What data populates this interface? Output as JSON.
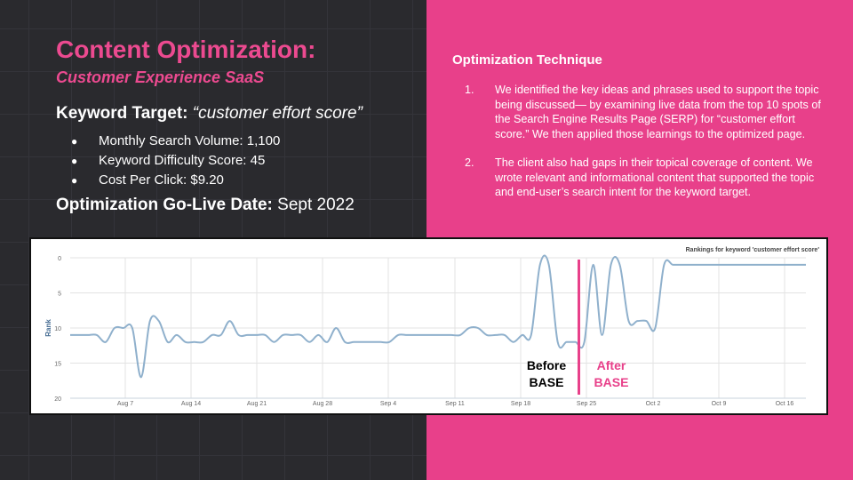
{
  "slide": {
    "title": "Content Optimization:",
    "subtitle": "Customer Experience SaaS",
    "keyword_label": "Keyword Target:",
    "keyword_value": "“customer effort score”",
    "bullets": [
      "Monthly Search Volume: 1,100",
      "Keyword Difficulty Score: 45",
      "Cost Per Click: $9.20"
    ],
    "golive_label": "Optimization Go-Live Date:",
    "golive_value": "Sept 2022",
    "technique_heading": "Optimization Technique",
    "steps": [
      {
        "num": "1.",
        "text": "We identified the key ideas and phrases used to support the topic being discussed— by examining live data from the top 10 spots of the Search Engine Results Page (SERP) for “customer effort score.” We then applied those learnings to the optimized page."
      },
      {
        "num": "2.",
        "text": "The client also had gaps in their topical coverage of content. We wrote relevant and informational content that supported the topic and end-user’s search intent for the keyword target."
      }
    ],
    "colors": {
      "accent": "#e8408a",
      "dark": "#2a2a2e",
      "line": "#8fb0cc"
    }
  },
  "chart_data": {
    "type": "line",
    "title": "Rankings for keyword 'customer effort score'",
    "ylabel": "Rank",
    "xlabel": "",
    "ylim": [
      20,
      0
    ],
    "yticks": [
      0,
      5,
      10,
      15,
      20
    ],
    "grid": true,
    "x_tick_labels": [
      "Aug 7",
      "Aug 14",
      "Aug 21",
      "Aug 28",
      "Sep 4",
      "Sep 11",
      "Sep 18",
      "Sep 25",
      "Oct 2",
      "Oct 9",
      "Oct 16"
    ],
    "series": [
      {
        "x": [
          1,
          2,
          3,
          4,
          5,
          6,
          7,
          8,
          9,
          10,
          11,
          12,
          13,
          14,
          15,
          16,
          17,
          18,
          19,
          20,
          21,
          22,
          23,
          24,
          25,
          26,
          27,
          28,
          29,
          30,
          31,
          32,
          33,
          34,
          35,
          36,
          37,
          38,
          39,
          40,
          41,
          42,
          43,
          44,
          45,
          46,
          47,
          48,
          49,
          50,
          51,
          52,
          53,
          54,
          55,
          56,
          57,
          58,
          59,
          60,
          61,
          62,
          63,
          64,
          65,
          66,
          67,
          68,
          69,
          70,
          71,
          72,
          73,
          74,
          75,
          76,
          77,
          78,
          79,
          80,
          81,
          82,
          83,
          84
        ],
        "values": [
          11,
          11,
          11,
          11,
          12,
          10,
          10,
          10,
          17,
          9,
          9,
          12,
          11,
          12,
          12,
          12,
          11,
          11,
          9,
          11,
          11,
          11,
          11,
          12,
          11,
          11,
          11,
          12,
          11,
          12,
          10,
          12,
          12,
          12,
          12,
          12,
          12,
          11,
          11,
          11,
          11,
          11,
          11,
          11,
          11,
          10,
          10,
          11,
          11,
          11,
          12,
          11,
          11,
          1,
          1,
          12,
          12,
          12,
          12,
          1,
          11,
          1,
          1,
          9,
          9,
          9,
          10,
          1,
          1,
          1,
          1,
          1,
          1,
          1,
          1,
          1,
          1,
          1,
          1,
          1,
          1,
          1,
          1,
          1
        ]
      }
    ],
    "annotations": [
      {
        "text_lines": [
          "Before",
          "BASE"
        ],
        "color": "#000000"
      },
      {
        "text_lines": [
          "After",
          "BASE"
        ],
        "color": "#e8408a"
      }
    ]
  }
}
